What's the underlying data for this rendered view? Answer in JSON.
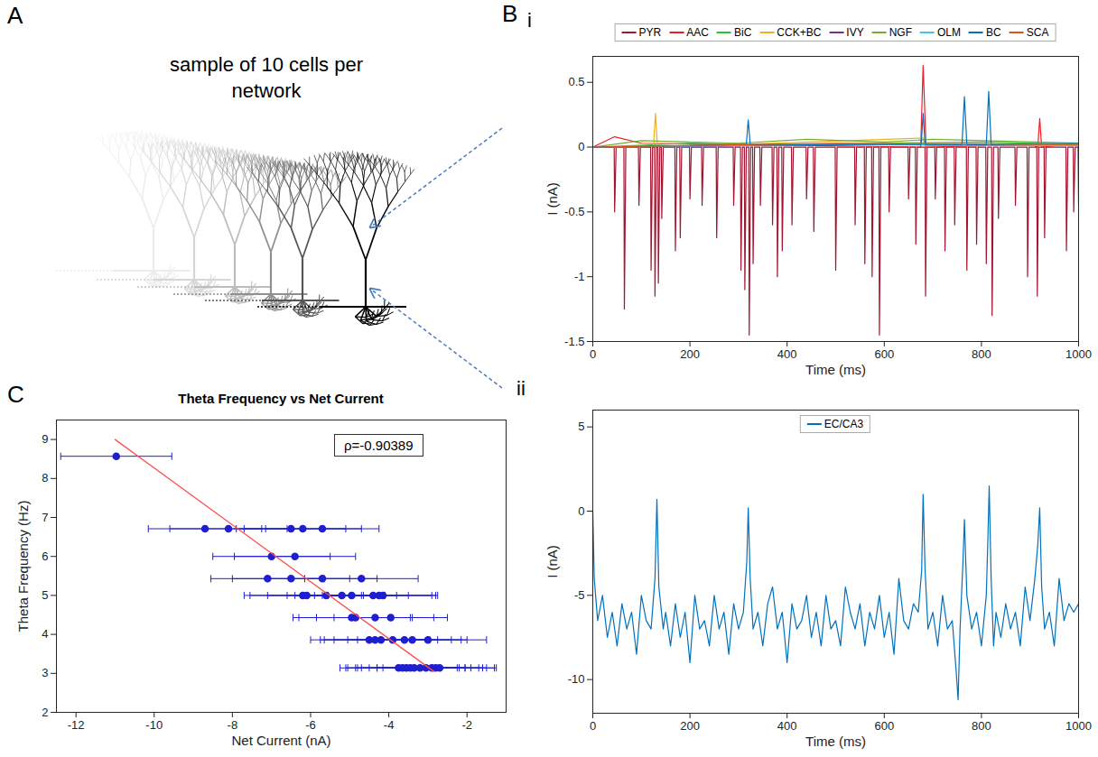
{
  "chart_data": [
    {
      "panel_label": "A",
      "type": "diagram",
      "title": "sample of 10 cells per network"
    },
    {
      "panel_label": "B",
      "subpanel_label": "i",
      "type": "line",
      "x_label": "Time (ms)",
      "y_label": "I (nA)",
      "xlim": [
        0,
        1000
      ],
      "xticks": [
        0,
        200,
        400,
        600,
        800,
        1000
      ],
      "ylim": [
        -1.5,
        0.7
      ],
      "yticks": [
        -1.5,
        -1,
        -0.5,
        0,
        0.5
      ],
      "legend": "top",
      "series": [
        {
          "name": "PYR",
          "color": "#a2142f",
          "x": [
            0,
            44,
            45,
            48,
            64,
            65,
            68,
            94,
            95,
            98,
            119,
            120,
            123,
            127,
            128,
            131,
            134,
            135,
            138,
            141,
            142,
            145,
            169,
            170,
            173,
            179,
            180,
            183,
            199,
            200,
            203,
            224,
            225,
            228,
            254,
            255,
            258,
            289,
            290,
            293,
            304,
            305,
            308,
            312,
            313,
            316,
            321,
            322,
            325,
            329,
            330,
            333,
            344,
            345,
            348,
            369,
            370,
            373,
            379,
            380,
            383,
            389,
            390,
            393,
            409,
            410,
            413,
            439,
            440,
            443,
            454,
            455,
            458,
            499,
            500,
            503,
            539,
            540,
            543,
            559,
            560,
            563,
            574,
            575,
            578,
            589,
            590,
            593,
            609,
            610,
            613,
            649,
            650,
            653,
            664,
            665,
            668,
            684,
            685,
            688,
            704,
            705,
            708,
            724,
            725,
            728,
            744,
            745,
            748,
            769,
            770,
            773,
            789,
            790,
            793,
            809,
            810,
            813,
            821,
            822,
            825,
            834,
            835,
            838,
            869,
            870,
            873,
            894,
            895,
            898,
            914,
            915,
            918,
            929,
            930,
            933,
            974,
            975,
            978,
            989,
            990,
            993,
            999,
            1000
          ],
          "values": [
            0,
            0,
            -0.5,
            0,
            0,
            -1.25,
            0,
            0,
            -0.45,
            0,
            0,
            -0.95,
            0,
            0,
            -1.15,
            0,
            0,
            -1.05,
            0,
            0,
            -0.55,
            0,
            0,
            -0.8,
            0,
            0,
            -0.7,
            0,
            0,
            -0.4,
            0,
            0,
            -0.45,
            0,
            0,
            -0.7,
            0,
            0,
            -0.45,
            0,
            0,
            -0.95,
            0,
            0,
            -1.1,
            0,
            0,
            -1.45,
            0,
            0,
            -0.9,
            0,
            0,
            -0.45,
            0,
            0,
            -0.6,
            0,
            0,
            -1,
            0,
            0,
            -0.8,
            0,
            0,
            -0.6,
            0,
            0,
            -0.4,
            0,
            0,
            -0.65,
            0,
            0,
            -0.95,
            0,
            0,
            -0.6,
            0,
            0,
            -0.9,
            0,
            0,
            -1,
            0,
            0,
            -1.45,
            0,
            0,
            -0.5,
            0,
            0,
            -0.4,
            0,
            0,
            -0.75,
            0,
            0,
            -1.15,
            0,
            0,
            -0.4,
            0,
            0,
            -0.8,
            0,
            0,
            -0.6,
            0,
            0,
            -0.95,
            0,
            0,
            -0.75,
            0,
            0,
            -0.9,
            0,
            0,
            -1.3,
            0,
            0,
            -0.55,
            0,
            0,
            -0.45,
            0,
            0,
            -1,
            0,
            0,
            -1.15,
            0,
            0,
            -0.7,
            0,
            0,
            -0.8,
            0,
            0,
            -0.5,
            0,
            0,
            -0.45
          ]
        },
        {
          "name": "AAC",
          "color": "#ee1c25",
          "x": [
            0,
            45,
            100,
            675,
            680,
            686,
            900,
            916,
            920,
            924,
            1000
          ],
          "values": [
            0,
            0.08,
            0.03,
            0,
            0.63,
            0,
            0.02,
            0,
            0.22,
            0,
            0.03
          ]
        },
        {
          "name": "BiC",
          "color": "#2fbf3a",
          "x": [
            0,
            200,
            400,
            600,
            800,
            1000
          ],
          "values": [
            0,
            0.03,
            0.02,
            0.03,
            0.04,
            0.02
          ]
        },
        {
          "name": "CCK+BC",
          "color": "#edb120",
          "x": [
            0,
            125,
            129,
            133,
            300,
            680,
            684,
            1000
          ],
          "values": [
            0,
            0.01,
            0.26,
            0.01,
            0.02,
            0.07,
            0.01,
            0.02
          ]
        },
        {
          "name": "IVY",
          "color": "#7e2f8e",
          "x": [
            0,
            300,
            600,
            1000
          ],
          "values": [
            0,
            0.01,
            0.02,
            0.01
          ]
        },
        {
          "name": "NGF",
          "color": "#77ac30",
          "x": [
            0,
            100,
            300,
            440,
            600,
            700,
            1000
          ],
          "values": [
            0,
            0.05,
            0.03,
            0.06,
            0.04,
            0.06,
            0.03
          ]
        },
        {
          "name": "OLM",
          "color": "#4dbeee",
          "x": [
            0,
            500,
            1000
          ],
          "values": [
            0,
            0.02,
            0.01
          ]
        },
        {
          "name": "BC",
          "color": "#0072bd",
          "x": [
            0,
            316,
            320,
            324,
            676,
            680,
            684,
            760,
            765,
            770,
            810,
            815,
            820,
            1000
          ],
          "values": [
            0,
            0.02,
            0.21,
            0.02,
            0.02,
            0.26,
            0.02,
            0.02,
            0.39,
            0.02,
            0.02,
            0.43,
            0.02,
            0.03
          ]
        },
        {
          "name": "SCA",
          "color": "#d95319",
          "x": [
            0,
            500,
            1000
          ],
          "values": [
            0,
            0.03,
            0.02
          ]
        }
      ]
    },
    {
      "subpanel_label": "ii",
      "type": "line",
      "x_label": "Time (ms)",
      "y_label": "I (nA)",
      "xlim": [
        0,
        1000
      ],
      "xticks": [
        0,
        200,
        400,
        600,
        800,
        1000
      ],
      "ylim": [
        -12,
        6
      ],
      "yticks": [
        -10,
        -5,
        0,
        5
      ],
      "legend": "upper center",
      "series": [
        {
          "name": "EC/CA3",
          "color": "#0072bd",
          "x": [
            0,
            3,
            10,
            20,
            30,
            40,
            50,
            60,
            70,
            80,
            90,
            100,
            110,
            120,
            128,
            132,
            136,
            145,
            150,
            160,
            170,
            180,
            190,
            200,
            210,
            220,
            230,
            240,
            250,
            260,
            270,
            280,
            290,
            300,
            310,
            317,
            320,
            324,
            330,
            340,
            350,
            360,
            370,
            380,
            390,
            400,
            410,
            420,
            430,
            440,
            450,
            460,
            470,
            480,
            490,
            500,
            510,
            520,
            530,
            540,
            550,
            560,
            570,
            580,
            590,
            600,
            610,
            620,
            630,
            640,
            650,
            660,
            670,
            677,
            680,
            684,
            690,
            700,
            710,
            720,
            730,
            740,
            748,
            752,
            756,
            762,
            765,
            770,
            780,
            790,
            800,
            810,
            813,
            816,
            820,
            825,
            830,
            840,
            850,
            860,
            870,
            880,
            890,
            900,
            910,
            916,
            920,
            924,
            930,
            940,
            950,
            960,
            970,
            980,
            990,
            1000
          ],
          "values": [
            0,
            -4,
            -6.5,
            -5,
            -7.5,
            -6,
            -8,
            -5.5,
            -7,
            -6,
            -8.5,
            -5,
            -6.5,
            -7,
            -4,
            0.7,
            -4.5,
            -7,
            -6,
            -8,
            -5.5,
            -7.5,
            -6,
            -9,
            -5,
            -7,
            -6.5,
            -8,
            -5,
            -7,
            -6,
            -8.5,
            -5.5,
            -7,
            -6,
            -3,
            0.2,
            -4,
            -7,
            -6,
            -8,
            -5.5,
            -4.5,
            -7,
            -6,
            -9,
            -5.5,
            -7,
            -6.5,
            -5,
            -7.5,
            -6,
            -8,
            -5,
            -7,
            -6.5,
            -8,
            -4.5,
            -6,
            -7,
            -5.5,
            -8,
            -6,
            -7,
            -5,
            -7.5,
            -6,
            -8.5,
            -4,
            -6.5,
            -7,
            -5.5,
            -6,
            -3.5,
            1,
            -3.5,
            -7,
            -6,
            -8,
            -5,
            -7,
            -6.5,
            -9.5,
            -11.2,
            -7,
            -3,
            -0.5,
            -5,
            -7,
            -6,
            -8,
            -5,
            -2,
            1.5,
            -4,
            -8,
            -6,
            -7.5,
            -5.5,
            -7,
            -6,
            -8,
            -4.5,
            -6.5,
            -4,
            -2,
            0.2,
            -4.5,
            -7,
            -6,
            -8,
            -4,
            -6.5,
            -5.5,
            -6,
            -5.5
          ]
        }
      ]
    },
    {
      "panel_label": "C",
      "type": "scatter",
      "title": "Theta Frequency vs Net Current",
      "x_label": "Net Current (nA)",
      "y_label": "Theta Frequency (Hz)",
      "xlim": [
        -12.5,
        -1
      ],
      "xticks": [
        -12,
        -10,
        -8,
        -6,
        -4,
        -2
      ],
      "ylim": [
        2,
        9.5
      ],
      "yticks": [
        2,
        3,
        4,
        5,
        6,
        7,
        8,
        9
      ],
      "color": "#1f1fd0",
      "x": [
        -10.97,
        -8.7,
        -8.1,
        -6.5,
        -6.2,
        -5.7,
        -7.0,
        -6.4,
        -7.1,
        -6.5,
        -5.7,
        -4.7,
        -6.2,
        -6.1,
        -5.6,
        -5.2,
        -4.95,
        -4.4,
        -4.25,
        -4.15,
        -4.95,
        -4.85,
        -4.35,
        -3.95,
        -4.5,
        -4.35,
        -4.2,
        -3.9,
        -3.6,
        -3.4,
        -3.0,
        -3.75,
        -3.65,
        -3.55,
        -3.45,
        -3.35,
        -3.2,
        -3.05,
        -2.9,
        -2.8,
        -2.7
      ],
      "values": [
        8.57,
        6.71,
        6.71,
        6.71,
        6.71,
        6.71,
        6.0,
        6.0,
        5.43,
        5.43,
        5.43,
        5.43,
        5.0,
        5.0,
        5.0,
        5.0,
        5.0,
        5.0,
        5.0,
        5.0,
        4.43,
        4.43,
        4.43,
        4.43,
        3.86,
        3.86,
        3.86,
        3.86,
        3.86,
        3.86,
        3.86,
        3.14,
        3.14,
        3.14,
        3.14,
        3.14,
        3.14,
        3.14,
        3.14,
        3.14,
        3.14
      ],
      "xerr": [
        1.42,
        1.45,
        1.5,
        1.4,
        1.5,
        1.45,
        1.5,
        1.55,
        1.45,
        1.5,
        1.4,
        1.45,
        1.5,
        1.45,
        1.5,
        1.4,
        1.45,
        1.5,
        1.45,
        1.4,
        1.5,
        1.45,
        1.5,
        1.45,
        1.5,
        1.4,
        1.45,
        1.5,
        1.45,
        1.4,
        1.5,
        1.5,
        1.45,
        1.5,
        1.4,
        1.45,
        1.5,
        1.45,
        1.4,
        1.5,
        1.45
      ],
      "fit_line": {
        "type": "line",
        "color": "#ff4d4d",
        "x": [
          -11,
          -2.85
        ],
        "values": [
          9.0,
          3.05
        ]
      },
      "annotations": [
        "ρ=-0.90389"
      ]
    }
  ]
}
